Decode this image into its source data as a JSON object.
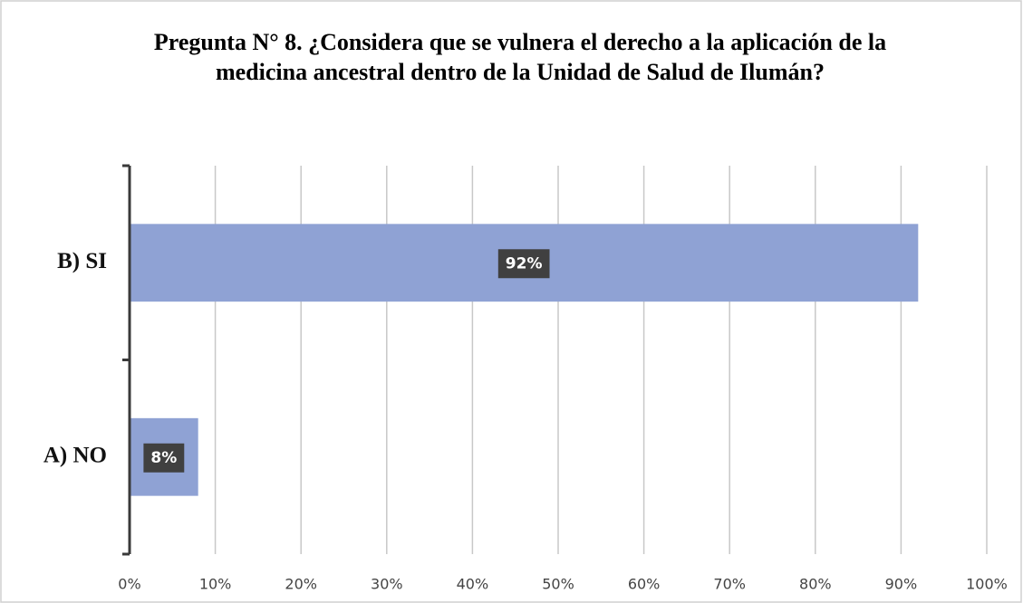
{
  "chart_data": {
    "type": "bar",
    "orientation": "horizontal",
    "title": "Pregunta N° 8. ¿Considera que se vulnera el derecho a la aplicación de la medicina ancestral dentro de la Unidad de Salud de Ilumán?",
    "categories": [
      "A) NO",
      "B) SI"
    ],
    "values": [
      8,
      92
    ],
    "value_labels": [
      "8%",
      "92%"
    ],
    "color": "#8fa2d4",
    "xlim": [
      0,
      100
    ],
    "xticks": [
      {
        "value": 0,
        "label": "0%"
      },
      {
        "value": 10,
        "label": "10%"
      },
      {
        "value": 20,
        "label": "20%"
      },
      {
        "value": 30,
        "label": "30%"
      },
      {
        "value": 40,
        "label": "40%"
      },
      {
        "value": 50,
        "label": "50%"
      },
      {
        "value": 60,
        "label": "60%"
      },
      {
        "value": 70,
        "label": "70%"
      },
      {
        "value": 80,
        "label": "80%"
      },
      {
        "value": 90,
        "label": "90%"
      },
      {
        "value": 100,
        "label": "100%"
      }
    ],
    "grid": true
  }
}
